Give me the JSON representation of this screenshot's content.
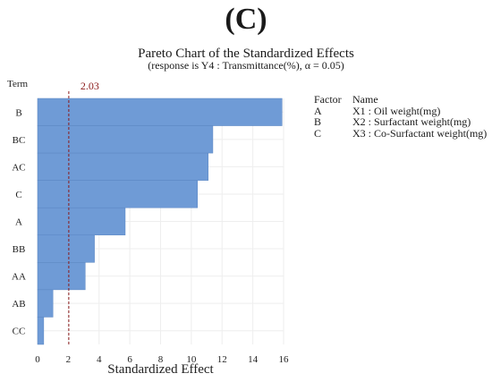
{
  "panel_label": "(C)",
  "chart_data": {
    "type": "bar",
    "orientation": "horizontal",
    "title": "Pareto Chart of the Standardized Effects",
    "subtitle": "(response is Y4 : Transmittance(%), α = 0.05)",
    "xlabel": "Standardized Effect",
    "ylabel": "Term",
    "categories": [
      "B",
      "BC",
      "AC",
      "C",
      "A",
      "BB",
      "AA",
      "AB",
      "CC"
    ],
    "values": [
      15.9,
      11.4,
      11.1,
      10.4,
      5.7,
      3.7,
      3.1,
      1.0,
      0.4
    ],
    "xlim": [
      0,
      16
    ],
    "xticks": [
      "0",
      "2",
      "4",
      "6",
      "8",
      "10",
      "12",
      "14",
      "16"
    ],
    "reference_line": {
      "value": 2.03,
      "label": "2.03",
      "color": "#8b1a1a"
    },
    "bar_color": "#6f9bd6",
    "grid": true,
    "legend": {
      "header": {
        "factor": "Factor",
        "name": "Name"
      },
      "rows": [
        {
          "factor": "A",
          "name": "X1 : Oil weight(mg)"
        },
        {
          "factor": "B",
          "name": "X2 : Surfactant weight(mg)"
        },
        {
          "factor": "C",
          "name": "X3 : Co-Surfactant weight(mg)"
        }
      ],
      "placement": "right"
    }
  }
}
